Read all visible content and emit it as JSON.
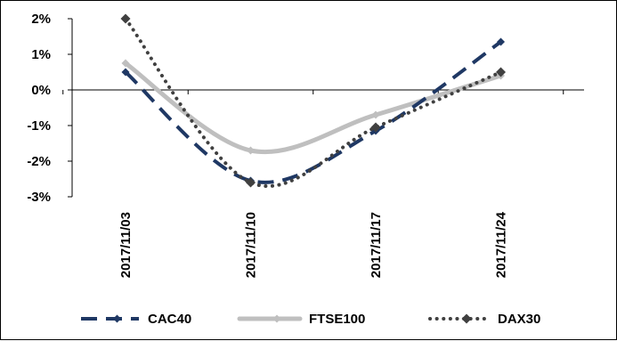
{
  "chart_data": {
    "type": "line",
    "title": "",
    "xlabel": "",
    "ylabel": "",
    "categories": [
      "2017/11/03",
      "2017/11/10",
      "2017/11/17",
      "2017/11/24"
    ],
    "y_ticks": [
      "2%",
      "1%",
      "0%",
      "-1%",
      "-2%",
      "-3%"
    ],
    "ylim": [
      -3,
      2
    ],
    "grid": false,
    "legend_position": "bottom",
    "series": [
      {
        "name": "CAC40",
        "values": [
          0.5,
          -2.55,
          -1.15,
          1.35
        ],
        "color": "#1f3864",
        "style": "dashed",
        "marker": "diamond"
      },
      {
        "name": "FTSE100",
        "values": [
          0.75,
          -1.7,
          -0.7,
          0.4
        ],
        "color": "#bfbfbf",
        "style": "solid",
        "marker": "diamond"
      },
      {
        "name": "DAX30",
        "values": [
          2.0,
          -2.6,
          -1.05,
          0.5
        ],
        "color": "#404040",
        "style": "dotted",
        "marker": "diamond"
      }
    ]
  }
}
